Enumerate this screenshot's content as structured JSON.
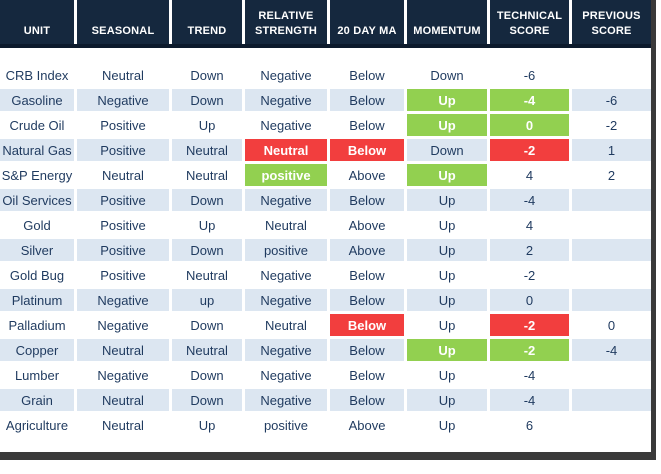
{
  "colors": {
    "header_bg": "#15283E",
    "header_border": "#0C1A2C",
    "stripe": "#DCE6F1",
    "green": "#92D050",
    "red": "#F23E3E",
    "text": "#1F3A5F",
    "shadow": "#3A3A3A"
  },
  "table": {
    "columns": [
      "UNIT",
      "SEASONAL",
      "TREND",
      "RELATIVE STRENGTH",
      "20 DAY MA",
      "MOMENTUM",
      "TECHNICAL SCORE",
      "PREVIOUS SCORE"
    ],
    "rows": [
      {
        "unit": "CRB Index",
        "cells": [
          "Neutral",
          "Down",
          "Negative",
          "Below",
          "Down",
          "-6",
          ""
        ]
      },
      {
        "unit": "Gasoline",
        "cells": [
          "Negative",
          "Down",
          "Negative",
          "Below",
          {
            "t": "Up",
            "hl": "green"
          },
          {
            "t": "-4",
            "hl": "green"
          },
          "-6"
        ]
      },
      {
        "unit": "Crude Oil",
        "cells": [
          "Positive",
          "Up",
          "Negative",
          "Below",
          {
            "t": "Up",
            "hl": "green"
          },
          {
            "t": "0",
            "hl": "green"
          },
          "-2"
        ]
      },
      {
        "unit": "Natural Gas",
        "cells": [
          "Positive",
          "Neutral",
          {
            "t": "Neutral",
            "hl": "red"
          },
          {
            "t": "Below",
            "hl": "red"
          },
          "Down",
          {
            "t": "-2",
            "hl": "red"
          },
          "1"
        ]
      },
      {
        "unit": "S&P Energy",
        "cells": [
          "Neutral",
          "Neutral",
          {
            "t": "positive",
            "hl": "green"
          },
          "Above",
          {
            "t": "Up",
            "hl": "green"
          },
          "4",
          "2"
        ]
      },
      {
        "unit": "Oil Services",
        "cells": [
          "Positive",
          "Down",
          "Negative",
          "Below",
          "Up",
          "-4",
          ""
        ]
      },
      {
        "unit": "Gold",
        "cells": [
          "Positive",
          "Up",
          "Neutral",
          "Above",
          "Up",
          "4",
          ""
        ]
      },
      {
        "unit": "Silver",
        "cells": [
          "Positive",
          "Down",
          "positive",
          "Above",
          "Up",
          "2",
          ""
        ]
      },
      {
        "unit": "Gold Bug",
        "cells": [
          "Positive",
          "Neutral",
          "Negative",
          "Below",
          "Up",
          "-2",
          ""
        ]
      },
      {
        "unit": "Platinum",
        "cells": [
          "Negative",
          "up",
          "Negative",
          "Below",
          "Up",
          "0",
          ""
        ]
      },
      {
        "unit": "Palladium",
        "cells": [
          "Negative",
          "Down",
          "Neutral",
          {
            "t": "Below",
            "hl": "red"
          },
          "Up",
          {
            "t": "-2",
            "hl": "red"
          },
          "0"
        ]
      },
      {
        "unit": "Copper",
        "cells": [
          "Neutral",
          "Neutral",
          "Negative",
          "Below",
          {
            "t": "Up",
            "hl": "green"
          },
          {
            "t": "-2",
            "hl": "green"
          },
          "-4"
        ]
      },
      {
        "unit": "Lumber",
        "cells": [
          "Negative",
          "Down",
          "Negative",
          "Below",
          "Up",
          "-4",
          ""
        ]
      },
      {
        "unit": "Grain",
        "cells": [
          "Neutral",
          "Down",
          "Negative",
          "Below",
          "Up",
          "-4",
          ""
        ]
      },
      {
        "unit": "Agriculture",
        "cells": [
          "Neutral",
          "Up",
          "positive",
          "Above",
          "Up",
          "6",
          ""
        ]
      }
    ]
  }
}
